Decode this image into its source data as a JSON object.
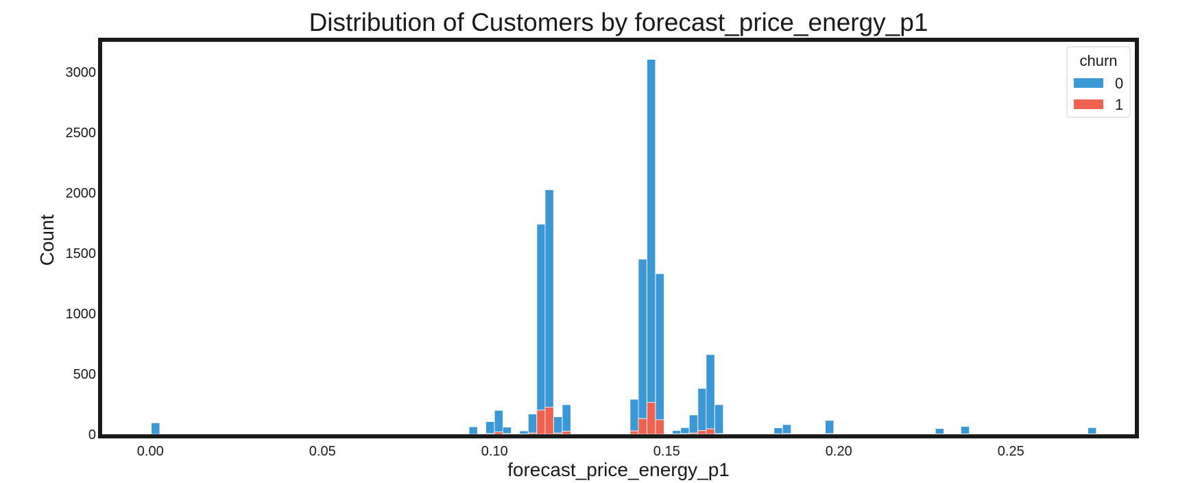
{
  "chart_data": {
    "type": "bar",
    "title": "Distribution of Customers by forecast_price_energy_p1",
    "xlabel": "forecast_price_energy_p1",
    "ylabel": "Count",
    "xlim": [
      -0.014,
      0.286
    ],
    "ylim": [
      0,
      3250
    ],
    "x_ticks": [
      0.0,
      0.05,
      0.1,
      0.15,
      0.2,
      0.25
    ],
    "x_tick_labels": [
      "0.00",
      "0.05",
      "0.10",
      "0.15",
      "0.20",
      "0.25"
    ],
    "y_ticks": [
      0,
      500,
      1000,
      1500,
      2000,
      2500,
      3000
    ],
    "y_tick_labels": [
      "0",
      "500",
      "1000",
      "1500",
      "2000",
      "2500",
      "3000"
    ],
    "bin_width": 0.00246,
    "grid": false,
    "stacked": true,
    "legend": {
      "title": "churn",
      "placement": "top-right",
      "entries": [
        {
          "label": "0",
          "color": "#3a98d6"
        },
        {
          "label": "1",
          "color": "#f0614f"
        }
      ]
    },
    "series": [
      {
        "name": "0",
        "color": "#3a98d6",
        "bins": [
          {
            "x": 0.0015,
            "value": 95
          },
          {
            "x": 0.0938,
            "value": 62
          },
          {
            "x": 0.0987,
            "value": 100
          },
          {
            "x": 0.1012,
            "value": 178
          },
          {
            "x": 0.1036,
            "value": 55
          },
          {
            "x": 0.1085,
            "value": 25
          },
          {
            "x": 0.111,
            "value": 158
          },
          {
            "x": 0.1135,
            "value": 1540
          },
          {
            "x": 0.1159,
            "value": 1800
          },
          {
            "x": 0.1184,
            "value": 135
          },
          {
            "x": 0.1209,
            "value": 220
          },
          {
            "x": 0.1406,
            "value": 262
          },
          {
            "x": 0.143,
            "value": 1320
          },
          {
            "x": 0.1455,
            "value": 2840
          },
          {
            "x": 0.148,
            "value": 1210
          },
          {
            "x": 0.1529,
            "value": 28
          },
          {
            "x": 0.1553,
            "value": 50
          },
          {
            "x": 0.1578,
            "value": 150
          },
          {
            "x": 0.1603,
            "value": 350
          },
          {
            "x": 0.1627,
            "value": 615
          },
          {
            "x": 0.1652,
            "value": 240
          },
          {
            "x": 0.1824,
            "value": 50
          },
          {
            "x": 0.1849,
            "value": 75
          },
          {
            "x": 0.1973,
            "value": 110
          },
          {
            "x": 0.2293,
            "value": 45
          },
          {
            "x": 0.2367,
            "value": 62
          },
          {
            "x": 0.2736,
            "value": 52
          }
        ]
      },
      {
        "name": "1",
        "color": "#f0614f",
        "bins": [
          {
            "x": 0.0015,
            "value": 0
          },
          {
            "x": 0.0938,
            "value": 0
          },
          {
            "x": 0.0987,
            "value": 5
          },
          {
            "x": 0.1012,
            "value": 20
          },
          {
            "x": 0.1036,
            "value": 5
          },
          {
            "x": 0.1085,
            "value": 3
          },
          {
            "x": 0.111,
            "value": 10
          },
          {
            "x": 0.1135,
            "value": 200
          },
          {
            "x": 0.1159,
            "value": 225
          },
          {
            "x": 0.1184,
            "value": 10
          },
          {
            "x": 0.1209,
            "value": 25
          },
          {
            "x": 0.1406,
            "value": 28
          },
          {
            "x": 0.143,
            "value": 130
          },
          {
            "x": 0.1455,
            "value": 265
          },
          {
            "x": 0.148,
            "value": 120
          },
          {
            "x": 0.1529,
            "value": 3
          },
          {
            "x": 0.1553,
            "value": 5
          },
          {
            "x": 0.1578,
            "value": 10
          },
          {
            "x": 0.1603,
            "value": 30
          },
          {
            "x": 0.1627,
            "value": 45
          },
          {
            "x": 0.1652,
            "value": 5
          },
          {
            "x": 0.1824,
            "value": 3
          },
          {
            "x": 0.1849,
            "value": 5
          },
          {
            "x": 0.1973,
            "value": 5
          },
          {
            "x": 0.2293,
            "value": 3
          },
          {
            "x": 0.2367,
            "value": 3
          },
          {
            "x": 0.2736,
            "value": 3
          }
        ]
      }
    ]
  }
}
